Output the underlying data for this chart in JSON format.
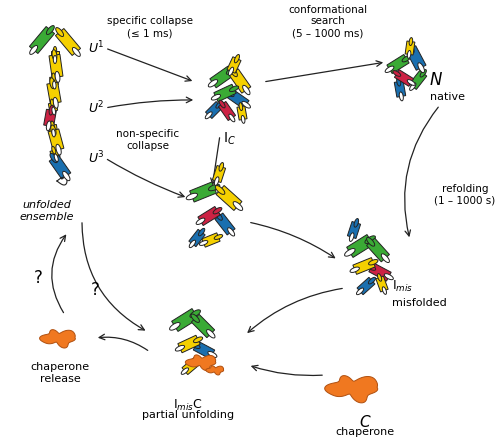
{
  "colors": {
    "green": "#3aaa35",
    "yellow": "#f5d000",
    "blue": "#1a6faf",
    "red": "#cc2244",
    "orange": "#f07820",
    "white": "#FFFFFF",
    "black": "#222222",
    "bg": "#FFFFFF"
  },
  "texts": {
    "specific_collapse": "specific collapse\n(≤ 1 ms)",
    "conformational_search": "conformational\nsearch\n(5 – 1000 ms)",
    "non_specific_collapse": "non-specific\ncollapse",
    "refolding": "refolding\n(1 – 1000 s)",
    "chaperone_release": "chaperone\nrelease",
    "unfolded_ensemble": "unfolded\nensemble",
    "N": "N",
    "native": "native",
    "Ic": "I$_C$",
    "Imis": "I$_{mis}$",
    "misfolded": "misfolded",
    "ImisC_label": "I$_{mis}$C",
    "partial_unfolding": "partial unfolding",
    "C": "C",
    "chaperone": "chaperone",
    "U1": "U$^1$",
    "U2": "U$^2$",
    "U3": "U$^3$",
    "question": "?"
  },
  "figsize": [
    5.0,
    4.46
  ],
  "dpi": 100
}
